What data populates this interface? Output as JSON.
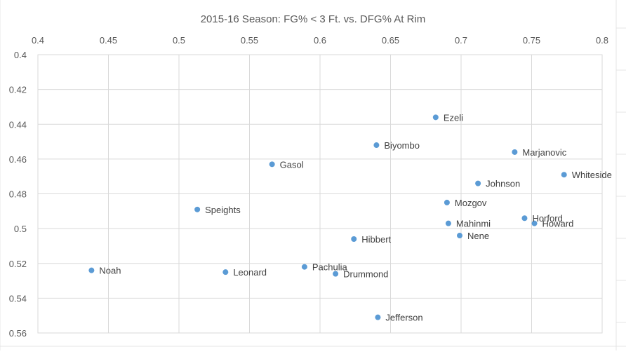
{
  "colors": {
    "marker": "#5b9bd5",
    "grid": "#d9d9d9",
    "axis_text": "#595959",
    "label_text": "#404040",
    "sheet_grid": "#e4e4e4"
  },
  "chart_data": {
    "type": "scatter",
    "title": "2015-16 Season: FG% < 3 Ft. vs. DFG% At Rim",
    "xlabel": "",
    "ylabel": "",
    "xlim": [
      0.4,
      0.8
    ],
    "ylim": [
      0.4,
      0.56
    ],
    "y_reversed": true,
    "x_axis_position": "top",
    "grid": true,
    "legend": "none",
    "x_ticks": [
      "0.4",
      "0.45",
      "0.5",
      "0.55",
      "0.6",
      "0.65",
      "0.7",
      "0.75",
      "0.8"
    ],
    "y_ticks": [
      "0.4",
      "0.42",
      "0.44",
      "0.46",
      "0.48",
      "0.5",
      "0.52",
      "0.54",
      "0.56"
    ],
    "points": [
      {
        "label": "Ezeli",
        "x": 0.682,
        "y": 0.436
      },
      {
        "label": "Biyombo",
        "x": 0.64,
        "y": 0.452
      },
      {
        "label": "Marjanovic",
        "x": 0.738,
        "y": 0.456
      },
      {
        "label": "Gasol",
        "x": 0.566,
        "y": 0.463
      },
      {
        "label": "Whiteside",
        "x": 0.773,
        "y": 0.469
      },
      {
        "label": "Johnson",
        "x": 0.712,
        "y": 0.474
      },
      {
        "label": "Mozgov",
        "x": 0.69,
        "y": 0.485
      },
      {
        "label": "Speights",
        "x": 0.513,
        "y": 0.489
      },
      {
        "label": "Horford",
        "x": 0.745,
        "y": 0.494
      },
      {
        "label": "Howard",
        "x": 0.752,
        "y": 0.497
      },
      {
        "label": "Mahinmi",
        "x": 0.691,
        "y": 0.497
      },
      {
        "label": "Nene",
        "x": 0.699,
        "y": 0.504
      },
      {
        "label": "Hibbert",
        "x": 0.624,
        "y": 0.506
      },
      {
        "label": "Pachulia",
        "x": 0.589,
        "y": 0.522
      },
      {
        "label": "Noah",
        "x": 0.438,
        "y": 0.524
      },
      {
        "label": "Leonard",
        "x": 0.533,
        "y": 0.525
      },
      {
        "label": "Drummond",
        "x": 0.611,
        "y": 0.526
      },
      {
        "label": "Jefferson",
        "x": 0.641,
        "y": 0.551
      }
    ]
  }
}
